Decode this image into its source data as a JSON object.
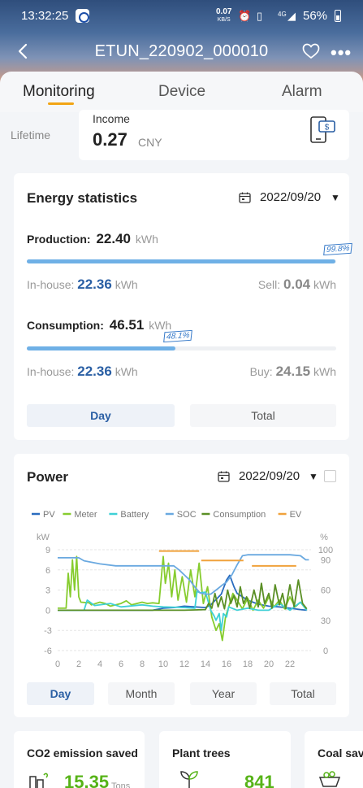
{
  "status_bar": {
    "time": "13:32:25",
    "net_speed": "0.07",
    "net_speed_unit": "KB/S",
    "network": "4G",
    "battery": "56%"
  },
  "header": {
    "title": "ETUN_220902_000010",
    "icons": [
      "back-arrow-icon",
      "heart-icon",
      "more-icon"
    ]
  },
  "tabs": [
    {
      "label": "Monitoring",
      "active": true
    },
    {
      "label": "Device",
      "active": false
    },
    {
      "label": "Alarm",
      "active": false
    }
  ],
  "lifetime": {
    "label": "Lifetime",
    "income_label": "Income",
    "income_value": "0.27",
    "income_unit": "CNY"
  },
  "energy": {
    "title": "Energy statistics",
    "date": "2022/09/20",
    "production": {
      "label": "Production:",
      "value": "22.40",
      "unit": "kWh",
      "pct_label": "99.8%",
      "pct": 99.8,
      "inhouse_label": "In-house:",
      "inhouse_value": "22.36",
      "inhouse_unit": "kWh",
      "sell_label": "Sell:",
      "sell_value": "0.04",
      "sell_unit": "kWh"
    },
    "consumption": {
      "label": "Consumption:",
      "value": "46.51",
      "unit": "kWh",
      "pct_label": "48.1%",
      "pct": 48.1,
      "inhouse_label": "In-house:",
      "inhouse_value": "22.36",
      "inhouse_unit": "kWh",
      "buy_label": "Buy:",
      "buy_value": "24.15",
      "buy_unit": "kWh"
    },
    "buttons": [
      {
        "label": "Day",
        "active": true
      },
      {
        "label": "Total",
        "active": false
      }
    ]
  },
  "power": {
    "title": "Power",
    "date": "2022/09/20",
    "buttons": [
      {
        "label": "Day",
        "active": true
      },
      {
        "label": "Month",
        "active": false
      },
      {
        "label": "Year",
        "active": false
      },
      {
        "label": "Total",
        "active": false
      }
    ]
  },
  "chart_data": {
    "type": "line",
    "legend_position": "top",
    "left_unit": "kW",
    "right_unit": "%",
    "x_ticks": [
      "0",
      "2",
      "4",
      "6",
      "8",
      "10",
      "12",
      "14",
      "16",
      "18",
      "20",
      "22"
    ],
    "y_left_ticks": [
      "9",
      "6",
      "3",
      "0",
      "-3",
      "-6"
    ],
    "y_right_ticks": [
      "100",
      "90",
      "60",
      "30",
      "0"
    ],
    "xlim": [
      0,
      24
    ],
    "ylim_left": [
      -6,
      9
    ],
    "ylim_right": [
      0,
      100
    ],
    "grid": true,
    "series": [
      {
        "name": "PV",
        "color": "#2a6cbf",
        "axis": "left",
        "points": [
          [
            0,
            0
          ],
          [
            6,
            0
          ],
          [
            7,
            0
          ],
          [
            9,
            0
          ],
          [
            10,
            0.3
          ],
          [
            11,
            0.4
          ],
          [
            12,
            0.6
          ],
          [
            13,
            0.5
          ],
          [
            14,
            0.4
          ],
          [
            14.5,
            0.8
          ],
          [
            15,
            1.6
          ],
          [
            15.5,
            2.4
          ],
          [
            16,
            4.5
          ],
          [
            16.3,
            5.2
          ],
          [
            16.7,
            3.5
          ],
          [
            17,
            2.5
          ],
          [
            17.5,
            2.0
          ],
          [
            18,
            1.5
          ],
          [
            19,
            0.9
          ],
          [
            20,
            0.6
          ],
          [
            21,
            0.5
          ],
          [
            22,
            0.3
          ],
          [
            23,
            0.1
          ],
          [
            23.6,
            0
          ]
        ]
      },
      {
        "name": "Meter",
        "color": "#86cc2e",
        "axis": "left",
        "points": [
          [
            0,
            0.3
          ],
          [
            0.8,
            0.3
          ],
          [
            1,
            5.5
          ],
          [
            1.2,
            2
          ],
          [
            1.4,
            7.5
          ],
          [
            1.6,
            3
          ],
          [
            1.8,
            8
          ],
          [
            2,
            2
          ],
          [
            2.2,
            1.2
          ],
          [
            3,
            1.1
          ],
          [
            3.2,
            0.8
          ],
          [
            4,
            1.2
          ],
          [
            4.5,
            1
          ],
          [
            5,
            0.6
          ],
          [
            6,
            1
          ],
          [
            6.5,
            1.4
          ],
          [
            7,
            0.8
          ],
          [
            8,
            1.2
          ],
          [
            8.5,
            1
          ],
          [
            9,
            1.1
          ],
          [
            9.6,
            1
          ],
          [
            10,
            8
          ],
          [
            10.2,
            4
          ],
          [
            10.5,
            7
          ],
          [
            10.8,
            2
          ],
          [
            11.1,
            6
          ],
          [
            11.4,
            1.5
          ],
          [
            11.8,
            5
          ],
          [
            12.2,
            1.2
          ],
          [
            12.6,
            6
          ],
          [
            13,
            2
          ],
          [
            13.4,
            7
          ],
          [
            13.8,
            1
          ],
          [
            14.2,
            3.5
          ],
          [
            14.6,
            -1
          ],
          [
            14.8,
            -2
          ],
          [
            15,
            -3
          ],
          [
            15.3,
            -2
          ],
          [
            15.6,
            -4.5
          ],
          [
            15.9,
            -1
          ],
          [
            16.2,
            0.5
          ],
          [
            16.6,
            2.5
          ],
          [
            17,
            1.5
          ],
          [
            17.5,
            0.2
          ],
          [
            18,
            1.8
          ],
          [
            18.5,
            0
          ],
          [
            19,
            1.5
          ],
          [
            19.5,
            0.3
          ],
          [
            20,
            2
          ],
          [
            20.5,
            0.5
          ],
          [
            21,
            1.5
          ],
          [
            21.5,
            0.2
          ],
          [
            22,
            2
          ],
          [
            22.5,
            0.5
          ],
          [
            23,
            1.2
          ],
          [
            23.5,
            0.2
          ]
        ]
      },
      {
        "name": "Battery",
        "color": "#3fd0d6",
        "axis": "left",
        "points": [
          [
            0,
            0
          ],
          [
            2.5,
            0
          ],
          [
            2.8,
            1.5
          ],
          [
            3.5,
            0.7
          ],
          [
            5,
            1
          ],
          [
            6,
            0.5
          ],
          [
            8,
            0.8
          ],
          [
            9,
            0.6
          ],
          [
            10,
            0.5
          ],
          [
            12,
            0.4
          ],
          [
            13,
            0.3
          ],
          [
            13.2,
            2.8
          ],
          [
            13.5,
            2.6
          ],
          [
            14,
            2.7
          ],
          [
            14.5,
            0
          ],
          [
            14.8,
            -0.8
          ],
          [
            15,
            -1.5
          ],
          [
            15.3,
            -0.5
          ],
          [
            15.5,
            -3
          ],
          [
            15.7,
            -0.5
          ],
          [
            16,
            -1
          ],
          [
            16.2,
            0.5
          ],
          [
            17,
            0
          ],
          [
            18,
            0.3
          ],
          [
            19,
            0
          ],
          [
            20,
            0
          ],
          [
            21,
            1.0
          ],
          [
            22,
            0
          ],
          [
            23,
            1.2
          ],
          [
            23.6,
            0
          ]
        ]
      },
      {
        "name": "SOC",
        "color": "#6aa9e0",
        "axis": "right",
        "points": [
          [
            0,
            92
          ],
          [
            2,
            92
          ],
          [
            2.5,
            89
          ],
          [
            4,
            86
          ],
          [
            5.5,
            84
          ],
          [
            8,
            84
          ],
          [
            9,
            84
          ],
          [
            9.8,
            84
          ],
          [
            10.3,
            84
          ],
          [
            11,
            84
          ],
          [
            11.5,
            80
          ],
          [
            12,
            75
          ],
          [
            12.5,
            70
          ],
          [
            13,
            63
          ],
          [
            13.5,
            57
          ],
          [
            14,
            56
          ],
          [
            14.5,
            56
          ],
          [
            15,
            60
          ],
          [
            15.6,
            65
          ],
          [
            16,
            68
          ],
          [
            16.5,
            75
          ],
          [
            17,
            85
          ],
          [
            17.5,
            94
          ],
          [
            18,
            95
          ],
          [
            20,
            95
          ],
          [
            22,
            95
          ],
          [
            23,
            94
          ],
          [
            23.5,
            90
          ],
          [
            23.8,
            90
          ]
        ]
      },
      {
        "name": "Consumption",
        "color": "#5a8f25",
        "axis": "left",
        "points": [
          [
            0,
            0
          ],
          [
            1,
            0
          ],
          [
            2,
            0
          ],
          [
            4,
            0
          ],
          [
            6,
            0
          ],
          [
            8,
            0
          ],
          [
            10,
            0
          ],
          [
            12,
            0
          ],
          [
            14,
            0.1
          ],
          [
            14.3,
            1
          ],
          [
            14.6,
            0.3
          ],
          [
            14.9,
            2.5
          ],
          [
            15.2,
            0.5
          ],
          [
            15.5,
            2
          ],
          [
            15.8,
            0.2
          ],
          [
            16.1,
            3
          ],
          [
            16.4,
            1
          ],
          [
            16.7,
            2.2
          ],
          [
            17,
            0.5
          ],
          [
            17.3,
            3.5
          ],
          [
            17.6,
            1
          ],
          [
            17.9,
            2
          ],
          [
            18.2,
            0.3
          ],
          [
            18.6,
            3
          ],
          [
            19,
            0.5
          ],
          [
            19.3,
            4
          ],
          [
            19.6,
            1
          ],
          [
            20,
            2.5
          ],
          [
            20.3,
            0.3
          ],
          [
            20.6,
            3.8
          ],
          [
            21,
            0.8
          ],
          [
            21.3,
            2.5
          ],
          [
            21.6,
            0.2
          ],
          [
            22,
            3.8
          ],
          [
            22.4,
            0.5
          ],
          [
            22.8,
            4.5
          ],
          [
            23.2,
            1
          ],
          [
            23.6,
            0.2
          ]
        ]
      },
      {
        "name": "EV",
        "color": "#f0a23c",
        "axis": "left",
        "segments": [
          [
            [
              9.6,
              8.8
            ],
            [
              13.4,
              8.8
            ]
          ],
          [
            [
              13.6,
              7.4
            ],
            [
              17.6,
              7.4
            ]
          ],
          [
            [
              18.4,
              6.6
            ],
            [
              22.6,
              6.6
            ]
          ]
        ]
      }
    ]
  },
  "bottom_cards": [
    {
      "title": "CO2 emission saved",
      "value": "15.35",
      "unit": "Tons"
    },
    {
      "title": "Plant trees",
      "value": "841",
      "unit": ""
    },
    {
      "title": "Coal saved",
      "value": "",
      "unit": ""
    }
  ]
}
